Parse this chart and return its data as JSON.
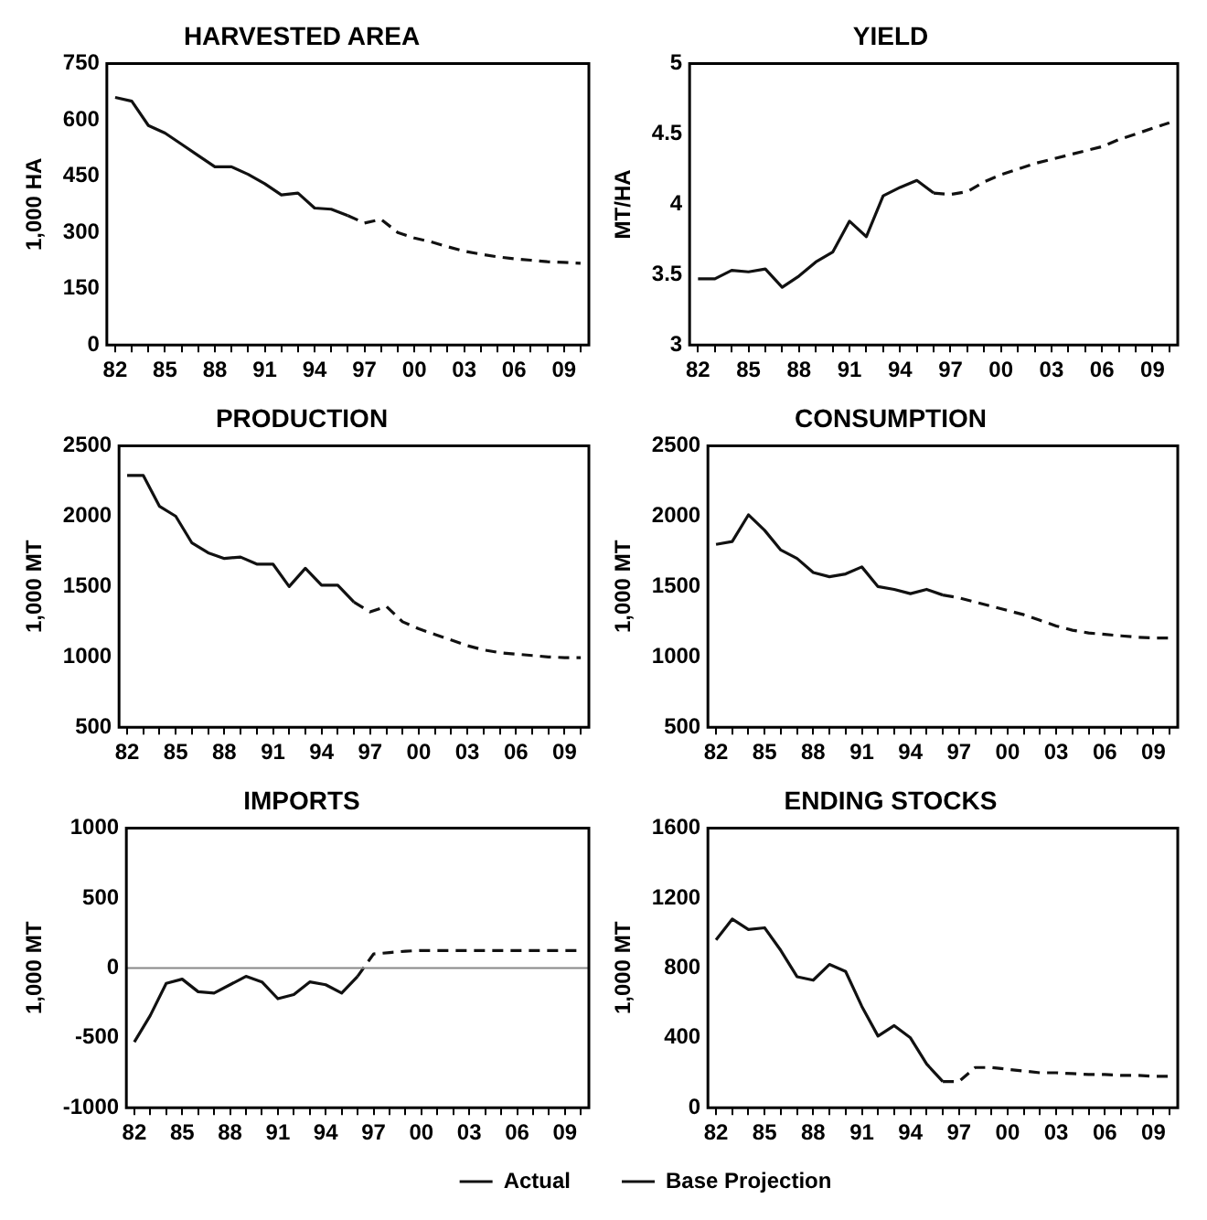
{
  "chart_data": [
    {
      "type": "line",
      "title": "HARVESTED AREA",
      "ylabel": "1,000 HA",
      "categories": [
        "82",
        null,
        null,
        "85",
        null,
        null,
        "88",
        null,
        null,
        "91",
        null,
        null,
        "94",
        null,
        null,
        "97",
        null,
        null,
        "00",
        null,
        null,
        "03",
        null,
        null,
        "06",
        null,
        null,
        "09",
        null
      ],
      "ylim": [
        0,
        750
      ],
      "yticks": [
        0,
        150,
        300,
        450,
        600,
        750
      ],
      "grid": false,
      "legend": false,
      "marker": "none",
      "series": [
        {
          "color": "#111111",
          "line_style": "solid",
          "values": [
            660,
            650,
            585,
            565,
            535,
            505,
            475,
            475,
            455,
            430,
            400,
            405,
            365,
            362,
            345,
            null,
            null,
            null,
            null,
            null,
            null,
            null,
            null,
            null,
            null,
            null,
            null,
            null,
            null
          ]
        },
        {
          "color": "#111111",
          "line_style": "dashed",
          "values": [
            null,
            null,
            null,
            null,
            null,
            null,
            null,
            null,
            null,
            null,
            null,
            null,
            null,
            null,
            345,
            325,
            335,
            300,
            285,
            275,
            262,
            250,
            242,
            235,
            230,
            226,
            222,
            220,
            218
          ]
        }
      ]
    },
    {
      "type": "line",
      "title": "YIELD",
      "ylabel": "MT/HA",
      "categories": [
        "82",
        null,
        null,
        "85",
        null,
        null,
        "88",
        null,
        null,
        "91",
        null,
        null,
        "94",
        null,
        null,
        "97",
        null,
        null,
        "00",
        null,
        null,
        "03",
        null,
        null,
        "06",
        null,
        null,
        "09",
        null
      ],
      "ylim": [
        3,
        5
      ],
      "yticks": [
        3,
        3.5,
        4,
        4.5,
        5
      ],
      "grid": false,
      "legend": false,
      "marker": "none",
      "series": [
        {
          "color": "#111111",
          "line_style": "solid",
          "values": [
            3.47,
            3.47,
            3.53,
            3.52,
            3.54,
            3.41,
            3.49,
            3.59,
            3.66,
            3.88,
            3.77,
            4.06,
            4.12,
            4.17,
            4.08,
            null,
            null,
            null,
            null,
            null,
            null,
            null,
            null,
            null,
            null,
            null,
            null,
            null,
            null
          ]
        },
        {
          "color": "#111111",
          "line_style": "dashed",
          "values": [
            null,
            null,
            null,
            null,
            null,
            null,
            null,
            null,
            null,
            null,
            null,
            null,
            null,
            null,
            4.08,
            4.07,
            4.09,
            4.16,
            4.21,
            4.25,
            4.29,
            4.32,
            4.35,
            4.38,
            4.41,
            4.46,
            4.5,
            4.54,
            4.58
          ]
        }
      ]
    },
    {
      "type": "line",
      "title": "PRODUCTION",
      "ylabel": "1,000 MT",
      "categories": [
        "82",
        null,
        null,
        "85",
        null,
        null,
        "88",
        null,
        null,
        "91",
        null,
        null,
        "94",
        null,
        null,
        "97",
        null,
        null,
        "00",
        null,
        null,
        "03",
        null,
        null,
        "06",
        null,
        null,
        "09",
        null
      ],
      "ylim": [
        500,
        2500
      ],
      "yticks": [
        500,
        1000,
        1500,
        2000,
        2500
      ],
      "grid": false,
      "legend": false,
      "marker": "none",
      "series": [
        {
          "color": "#111111",
          "line_style": "solid",
          "values": [
            2290,
            2290,
            2070,
            2000,
            1810,
            1740,
            1700,
            1710,
            1660,
            1660,
            1500,
            1630,
            1510,
            1510,
            1390,
            null,
            null,
            null,
            null,
            null,
            null,
            null,
            null,
            null,
            null,
            null,
            null,
            null,
            null
          ]
        },
        {
          "color": "#111111",
          "line_style": "dashed",
          "values": [
            null,
            null,
            null,
            null,
            null,
            null,
            null,
            null,
            null,
            null,
            null,
            null,
            null,
            null,
            1390,
            1320,
            1360,
            1250,
            1200,
            1160,
            1120,
            1080,
            1050,
            1030,
            1020,
            1010,
            1000,
            995,
            995
          ]
        }
      ]
    },
    {
      "type": "line",
      "title": "CONSUMPTION",
      "ylabel": "1,000 MT",
      "categories": [
        "82",
        null,
        null,
        "85",
        null,
        null,
        "88",
        null,
        null,
        "91",
        null,
        null,
        "94",
        null,
        null,
        "97",
        null,
        null,
        "00",
        null,
        null,
        "03",
        null,
        null,
        "06",
        null,
        null,
        "09",
        null
      ],
      "ylim": [
        500,
        2500
      ],
      "yticks": [
        500,
        1000,
        1500,
        2000,
        2500
      ],
      "grid": false,
      "legend": false,
      "marker": "none",
      "series": [
        {
          "color": "#111111",
          "line_style": "solid",
          "values": [
            1800,
            1820,
            2010,
            1900,
            1760,
            1700,
            1600,
            1570,
            1590,
            1640,
            1500,
            1480,
            1450,
            1480,
            1440,
            null,
            null,
            null,
            null,
            null,
            null,
            null,
            null,
            null,
            null,
            null,
            null,
            null,
            null
          ]
        },
        {
          "color": "#111111",
          "line_style": "dashed",
          "values": [
            null,
            null,
            null,
            null,
            null,
            null,
            null,
            null,
            null,
            null,
            null,
            null,
            null,
            null,
            1440,
            1420,
            1390,
            1360,
            1330,
            1300,
            1260,
            1220,
            1190,
            1170,
            1160,
            1150,
            1140,
            1135,
            1135
          ]
        }
      ]
    },
    {
      "type": "line",
      "title": "IMPORTS",
      "ylabel": "1,000 MT",
      "categories": [
        "82",
        null,
        null,
        "85",
        null,
        null,
        "88",
        null,
        null,
        "91",
        null,
        null,
        "94",
        null,
        null,
        "97",
        null,
        null,
        "00",
        null,
        null,
        "03",
        null,
        null,
        "06",
        null,
        null,
        "09",
        null
      ],
      "ylim": [
        -1000,
        1000
      ],
      "yticks": [
        -1000,
        -500,
        0,
        500,
        1000
      ],
      "grid": false,
      "legend": "bottom right",
      "marker": "none",
      "ref_lines": [
        {
          "axis": "y",
          "value": 0,
          "color": "#888888",
          "line_style": "solid"
        }
      ],
      "series": [
        {
          "name": "Actual",
          "color": "#111111",
          "line_style": "solid",
          "values": [
            -530,
            -340,
            -110,
            -80,
            -170,
            -180,
            -120,
            -60,
            -100,
            -220,
            -190,
            -100,
            -120,
            -180,
            -60,
            null,
            null,
            null,
            null,
            null,
            null,
            null,
            null,
            null,
            null,
            null,
            null,
            null,
            null
          ]
        },
        {
          "color": "#111111",
          "line_style": "dashed",
          "values": [
            null,
            null,
            null,
            null,
            null,
            null,
            null,
            null,
            null,
            null,
            null,
            null,
            null,
            null,
            -60,
            100,
            110,
            120,
            125,
            125,
            125,
            125,
            125,
            125,
            125,
            125,
            125,
            125,
            125
          ]
        }
      ]
    },
    {
      "type": "line",
      "title": "ENDING STOCKS",
      "ylabel": "1,000 MT",
      "categories": [
        "82",
        null,
        null,
        "85",
        null,
        null,
        "88",
        null,
        null,
        "91",
        null,
        null,
        "94",
        null,
        null,
        "97",
        null,
        null,
        "00",
        null,
        null,
        "03",
        null,
        null,
        "06",
        null,
        null,
        "09",
        null
      ],
      "ylim": [
        0,
        1600
      ],
      "yticks": [
        0,
        400,
        800,
        1200,
        1600
      ],
      "grid": false,
      "legend": "bottom left",
      "marker": "none",
      "series": [
        {
          "color": "#111111",
          "line_style": "solid",
          "values": [
            960,
            1080,
            1020,
            1030,
            900,
            750,
            730,
            820,
            780,
            580,
            410,
            470,
            400,
            250,
            150,
            null,
            null,
            null,
            null,
            null,
            null,
            null,
            null,
            null,
            null,
            null,
            null,
            null,
            null
          ]
        },
        {
          "name": "Base Projection",
          "color": "#111111",
          "line_style": "dashed",
          "values": [
            null,
            null,
            null,
            null,
            null,
            null,
            null,
            null,
            null,
            null,
            null,
            null,
            null,
            null,
            150,
            150,
            230,
            230,
            220,
            210,
            200,
            200,
            195,
            190,
            190,
            185,
            185,
            180,
            180
          ]
        }
      ]
    }
  ]
}
